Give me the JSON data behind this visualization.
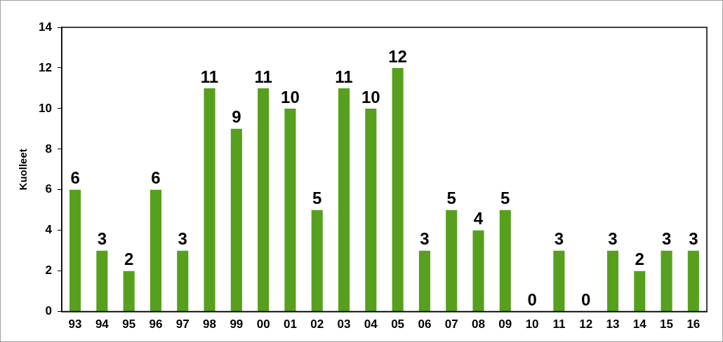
{
  "chart_data": {
    "type": "bar",
    "ylabel": "Kuolleet",
    "categories": [
      "93",
      "94",
      "95",
      "96",
      "97",
      "98",
      "99",
      "00",
      "01",
      "02",
      "03",
      "04",
      "05",
      "06",
      "07",
      "08",
      "09",
      "10",
      "11",
      "12",
      "13",
      "14",
      "15",
      "16"
    ],
    "values": [
      6,
      3,
      2,
      6,
      3,
      11,
      9,
      11,
      10,
      5,
      11,
      10,
      12,
      3,
      5,
      4,
      5,
      0,
      3,
      0,
      3,
      2,
      3,
      3
    ],
    "color": "#56a01e",
    "ylim": [
      0,
      14
    ],
    "yticks": [
      0,
      2,
      4,
      6,
      8,
      10,
      12,
      14
    ],
    "data_labels": true,
    "grid": false,
    "legend": false
  }
}
